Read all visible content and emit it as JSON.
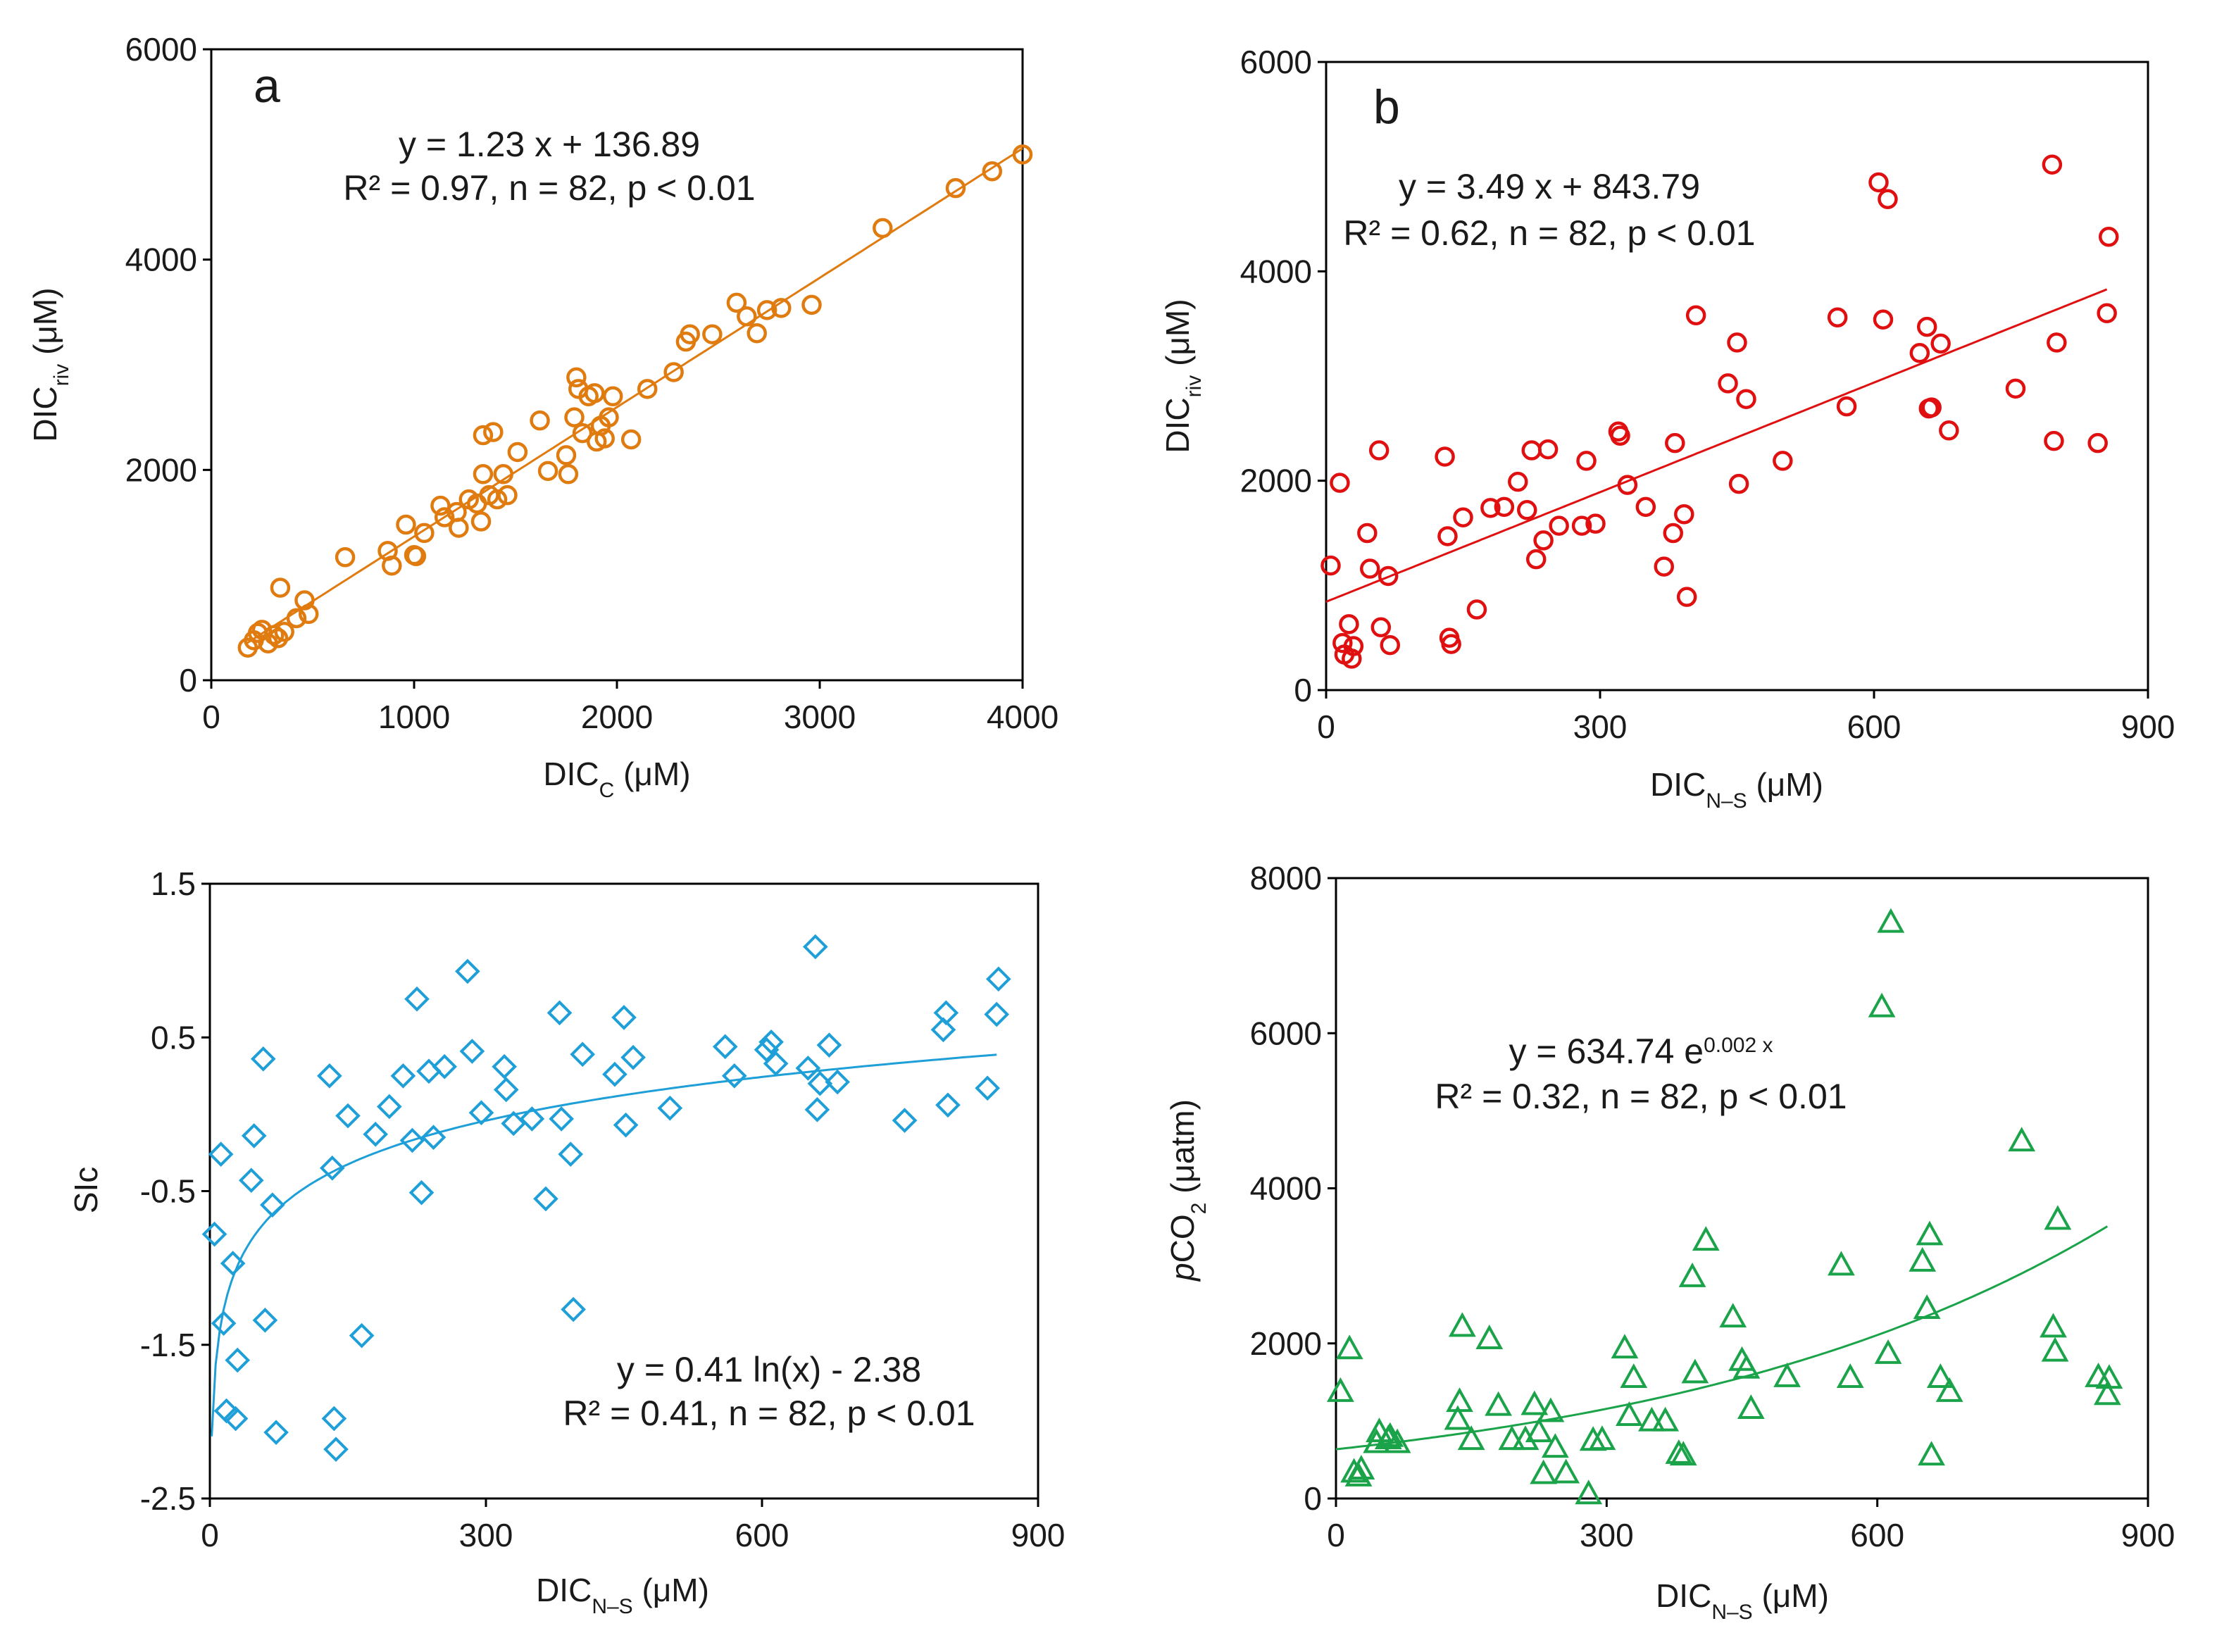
{
  "chart_data": [
    {
      "id": "a",
      "type": "scatter",
      "panel_label": "a",
      "xlabel": {
        "main": "DIC",
        "sub": "C",
        "unit": " (μM)"
      },
      "ylabel": {
        "main": "DIC",
        "sub": "riv",
        "unit": " (μM)"
      },
      "xlim": [
        0,
        4000
      ],
      "ylim": [
        0,
        6000
      ],
      "xticks": [
        0,
        1000,
        2000,
        3000,
        4000
      ],
      "yticks": [
        0,
        2000,
        4000,
        6000
      ],
      "xtick_labels": [
        "0",
        "1000",
        "2000",
        "3000",
        "4000"
      ],
      "ytick_labels": [
        "0",
        "2000",
        "4000",
        "6000"
      ],
      "marker": "circle",
      "color": "#E07B10",
      "fit": {
        "kind": "linear",
        "a": 1.23,
        "b": 136.89,
        "range": [
          170,
          4000
        ]
      },
      "equation": "y = 1.23 x + 136.89",
      "stats": "R² = 0.97, n = 82, p < 0.01",
      "points": [
        [
          180,
          310
        ],
        [
          210,
          380
        ],
        [
          230,
          450
        ],
        [
          250,
          480
        ],
        [
          280,
          350
        ],
        [
          310,
          430
        ],
        [
          330,
          400
        ],
        [
          340,
          880
        ],
        [
          360,
          460
        ],
        [
          420,
          590
        ],
        [
          460,
          760
        ],
        [
          480,
          630
        ],
        [
          660,
          1170
        ],
        [
          870,
          1230
        ],
        [
          890,
          1090
        ],
        [
          960,
          1480
        ],
        [
          1000,
          1190
        ],
        [
          1010,
          1180
        ],
        [
          1050,
          1400
        ],
        [
          1130,
          1660
        ],
        [
          1150,
          1550
        ],
        [
          1210,
          1600
        ],
        [
          1220,
          1450
        ],
        [
          1270,
          1720
        ],
        [
          1310,
          1680
        ],
        [
          1330,
          1510
        ],
        [
          1340,
          2330
        ],
        [
          1340,
          1960
        ],
        [
          1370,
          1760
        ],
        [
          1390,
          2360
        ],
        [
          1410,
          1720
        ],
        [
          1440,
          1960
        ],
        [
          1460,
          1760
        ],
        [
          1510,
          2170
        ],
        [
          1620,
          2470
        ],
        [
          1660,
          1990
        ],
        [
          1750,
          2140
        ],
        [
          1760,
          1960
        ],
        [
          1790,
          2500
        ],
        [
          1800,
          2880
        ],
        [
          1810,
          2770
        ],
        [
          1830,
          2350
        ],
        [
          1860,
          2700
        ],
        [
          1890,
          2730
        ],
        [
          1900,
          2270
        ],
        [
          1920,
          2420
        ],
        [
          1940,
          2300
        ],
        [
          1960,
          2500
        ],
        [
          1980,
          2700
        ],
        [
          2070,
          2290
        ],
        [
          2150,
          2770
        ],
        [
          2280,
          2930
        ],
        [
          2340,
          3220
        ],
        [
          2360,
          3290
        ],
        [
          2470,
          3290
        ],
        [
          2590,
          3590
        ],
        [
          2640,
          3460
        ],
        [
          2690,
          3300
        ],
        [
          2740,
          3520
        ],
        [
          2810,
          3540
        ],
        [
          2960,
          3570
        ],
        [
          3310,
          4300
        ],
        [
          3670,
          4680
        ],
        [
          3850,
          4840
        ],
        [
          4000,
          5000
        ]
      ]
    },
    {
      "id": "b",
      "type": "scatter",
      "panel_label": "b",
      "xlabel": {
        "main": "DIC",
        "sub": "N–S",
        "unit": " (μM)"
      },
      "ylabel": {
        "main": "DIC",
        "sub": "riv",
        "unit": " (μM)"
      },
      "xlim": [
        0,
        900
      ],
      "ylim": [
        0,
        6000
      ],
      "xticks": [
        0,
        300,
        600,
        900
      ],
      "yticks": [
        0,
        2000,
        4000,
        6000
      ],
      "xtick_labels": [
        "0",
        "300",
        "600",
        "900"
      ],
      "ytick_labels": [
        "0",
        "2000",
        "4000",
        "6000"
      ],
      "marker": "circle",
      "color": "#E01010",
      "fit": {
        "kind": "linear",
        "a": 3.49,
        "b": 843.79,
        "range": [
          0,
          855
        ]
      },
      "equation": "y = 3.49 x + 843.79",
      "stats": "R² = 0.62, n = 82, p < 0.01",
      "points": [
        [
          5,
          1190
        ],
        [
          15,
          1980
        ],
        [
          18,
          450
        ],
        [
          20,
          340
        ],
        [
          25,
          630
        ],
        [
          28,
          300
        ],
        [
          30,
          420
        ],
        [
          45,
          1500
        ],
        [
          48,
          1160
        ],
        [
          58,
          2290
        ],
        [
          60,
          600
        ],
        [
          68,
          1090
        ],
        [
          70,
          430
        ],
        [
          130,
          2230
        ],
        [
          133,
          1470
        ],
        [
          135,
          500
        ],
        [
          137,
          440
        ],
        [
          150,
          1650
        ],
        [
          165,
          770
        ],
        [
          180,
          1740
        ],
        [
          195,
          1750
        ],
        [
          210,
          1990
        ],
        [
          220,
          1720
        ],
        [
          225,
          2290
        ],
        [
          230,
          1250
        ],
        [
          238,
          1430
        ],
        [
          243,
          2300
        ],
        [
          255,
          1570
        ],
        [
          280,
          1570
        ],
        [
          285,
          2190
        ],
        [
          295,
          1590
        ],
        [
          320,
          2470
        ],
        [
          322,
          2430
        ],
        [
          330,
          1960
        ],
        [
          350,
          1750
        ],
        [
          370,
          1180
        ],
        [
          380,
          1500
        ],
        [
          382,
          2360
        ],
        [
          392,
          1680
        ],
        [
          395,
          890
        ],
        [
          405,
          3580
        ],
        [
          440,
          2930
        ],
        [
          450,
          3320
        ],
        [
          452,
          1970
        ],
        [
          460,
          2780
        ],
        [
          500,
          2190
        ],
        [
          560,
          3560
        ],
        [
          570,
          2710
        ],
        [
          605,
          4850
        ],
        [
          610,
          3540
        ],
        [
          615,
          4690
        ],
        [
          650,
          3220
        ],
        [
          658,
          3470
        ],
        [
          660,
          2690
        ],
        [
          663,
          2700
        ],
        [
          673,
          3310
        ],
        [
          682,
          2480
        ],
        [
          755,
          2880
        ],
        [
          795,
          5020
        ],
        [
          797,
          2380
        ],
        [
          800,
          3320
        ],
        [
          845,
          2360
        ],
        [
          855,
          3600
        ],
        [
          857,
          4330
        ]
      ]
    },
    {
      "id": "c",
      "type": "scatter",
      "panel_label": "",
      "xlabel": {
        "main": "DIC",
        "sub": "N–S",
        "unit": " (μM)"
      },
      "ylabel": {
        "main": "SIc",
        "sub": "",
        "unit": ""
      },
      "xlim": [
        0,
        900
      ],
      "ylim": [
        -2.5,
        1.5
      ],
      "xticks": [
        0,
        300,
        600,
        900
      ],
      "yticks": [
        -2.5,
        -1.5,
        -0.5,
        0.5,
        1.5
      ],
      "xtick_labels": [
        "0",
        "300",
        "600",
        "900"
      ],
      "ytick_labels": [
        "-2.5",
        "-1.5",
        "-0.5",
        "0.5",
        "1.5"
      ],
      "marker": "diamond",
      "color": "#1E9FD8",
      "fit": {
        "kind": "log",
        "a": 0.41,
        "b": -2.38,
        "range": [
          2,
          855
        ]
      },
      "equation": "y = 0.41 ln(x) - 2.38",
      "stats": "R² = 0.41, n = 82, p < 0.01",
      "points": [
        [
          5,
          -0.78
        ],
        [
          12,
          -0.26
        ],
        [
          15,
          -1.36
        ],
        [
          18,
          -1.93
        ],
        [
          25,
          -0.97
        ],
        [
          28,
          -1.98
        ],
        [
          30,
          -1.6
        ],
        [
          45,
          -0.43
        ],
        [
          48,
          -0.14
        ],
        [
          58,
          0.36
        ],
        [
          60,
          -1.34
        ],
        [
          68,
          -0.59
        ],
        [
          72,
          -2.07
        ],
        [
          130,
          0.25
        ],
        [
          133,
          -0.35
        ],
        [
          135,
          -1.98
        ],
        [
          137,
          -2.18
        ],
        [
          150,
          -0.01
        ],
        [
          165,
          -1.44
        ],
        [
          180,
          -0.13
        ],
        [
          195,
          0.05
        ],
        [
          210,
          0.25
        ],
        [
          220,
          -0.17
        ],
        [
          225,
          0.75
        ],
        [
          230,
          -0.51
        ],
        [
          238,
          0.28
        ],
        [
          243,
          -0.15
        ],
        [
          255,
          0.31
        ],
        [
          280,
          0.93
        ],
        [
          285,
          0.41
        ],
        [
          295,
          0.01
        ],
        [
          320,
          0.31
        ],
        [
          322,
          0.16
        ],
        [
          330,
          -0.06
        ],
        [
          350,
          -0.03
        ],
        [
          365,
          -0.55
        ],
        [
          380,
          0.66
        ],
        [
          382,
          -0.03
        ],
        [
          392,
          -0.26
        ],
        [
          395,
          -1.27
        ],
        [
          405,
          0.39
        ],
        [
          440,
          0.26
        ],
        [
          450,
          0.63
        ],
        [
          452,
          -0.07
        ],
        [
          460,
          0.37
        ],
        [
          500,
          0.04
        ],
        [
          560,
          0.44
        ],
        [
          570,
          0.25
        ],
        [
          605,
          0.42
        ],
        [
          610,
          0.47
        ],
        [
          615,
          0.33
        ],
        [
          650,
          0.3
        ],
        [
          658,
          1.09
        ],
        [
          660,
          0.03
        ],
        [
          663,
          0.2
        ],
        [
          673,
          0.45
        ],
        [
          682,
          0.21
        ],
        [
          755,
          -0.04
        ],
        [
          797,
          0.55
        ],
        [
          800,
          0.66
        ],
        [
          802,
          0.06
        ],
        [
          845,
          0.17
        ],
        [
          855,
          0.65
        ],
        [
          857,
          0.88
        ]
      ]
    },
    {
      "id": "d",
      "type": "scatter",
      "panel_label": "",
      "xlabel": {
        "main": "DIC",
        "sub": "N–S",
        "unit": " (μM)"
      },
      "ylabel": {
        "italic": "p",
        "main": "CO",
        "sub": "2",
        "unit": " (μatm)"
      },
      "xlim": [
        0,
        900
      ],
      "ylim": [
        0,
        8000
      ],
      "xticks": [
        0,
        300,
        600,
        900
      ],
      "yticks": [
        0,
        2000,
        4000,
        6000,
        8000
      ],
      "xtick_labels": [
        "0",
        "300",
        "600",
        "900"
      ],
      "ytick_labels": [
        "0",
        "2000",
        "4000",
        "6000",
        "8000"
      ],
      "marker": "triangle",
      "color": "#1BA34A",
      "fit": {
        "kind": "exp",
        "a": 634.74,
        "b": 0.002,
        "range": [
          0,
          855
        ]
      },
      "equation_main": "y = 634.74 e",
      "equation_sup": "0.002 x",
      "stats": "R² = 0.32, n = 82, p < 0.01",
      "points": [
        [
          5,
          1380
        ],
        [
          15,
          1930
        ],
        [
          20,
          340
        ],
        [
          25,
          290
        ],
        [
          28,
          380
        ],
        [
          45,
          720
        ],
        [
          48,
          860
        ],
        [
          58,
          770
        ],
        [
          60,
          800
        ],
        [
          68,
          720
        ],
        [
          135,
          1020
        ],
        [
          137,
          1250
        ],
        [
          140,
          2220
        ],
        [
          150,
          760
        ],
        [
          170,
          2060
        ],
        [
          180,
          1200
        ],
        [
          195,
          760
        ],
        [
          210,
          760
        ],
        [
          220,
          1210
        ],
        [
          225,
          860
        ],
        [
          230,
          320
        ],
        [
          238,
          1120
        ],
        [
          243,
          660
        ],
        [
          255,
          330
        ],
        [
          280,
          60
        ],
        [
          285,
          750
        ],
        [
          295,
          760
        ],
        [
          320,
          1940
        ],
        [
          325,
          1070
        ],
        [
          330,
          1560
        ],
        [
          350,
          1000
        ],
        [
          365,
          1000
        ],
        [
          380,
          580
        ],
        [
          385,
          560
        ],
        [
          395,
          2860
        ],
        [
          398,
          1620
        ],
        [
          410,
          3330
        ],
        [
          440,
          2340
        ],
        [
          450,
          1780
        ],
        [
          455,
          1680
        ],
        [
          460,
          1160
        ],
        [
          500,
          1570
        ],
        [
          560,
          3010
        ],
        [
          570,
          1560
        ],
        [
          605,
          6340
        ],
        [
          612,
          1870
        ],
        [
          615,
          7430
        ],
        [
          650,
          3060
        ],
        [
          655,
          2450
        ],
        [
          658,
          3400
        ],
        [
          660,
          560
        ],
        [
          670,
          1560
        ],
        [
          680,
          1380
        ],
        [
          760,
          4610
        ],
        [
          795,
          2210
        ],
        [
          797,
          1900
        ],
        [
          800,
          3600
        ],
        [
          845,
          1570
        ],
        [
          855,
          1340
        ],
        [
          857,
          1550
        ]
      ]
    }
  ]
}
